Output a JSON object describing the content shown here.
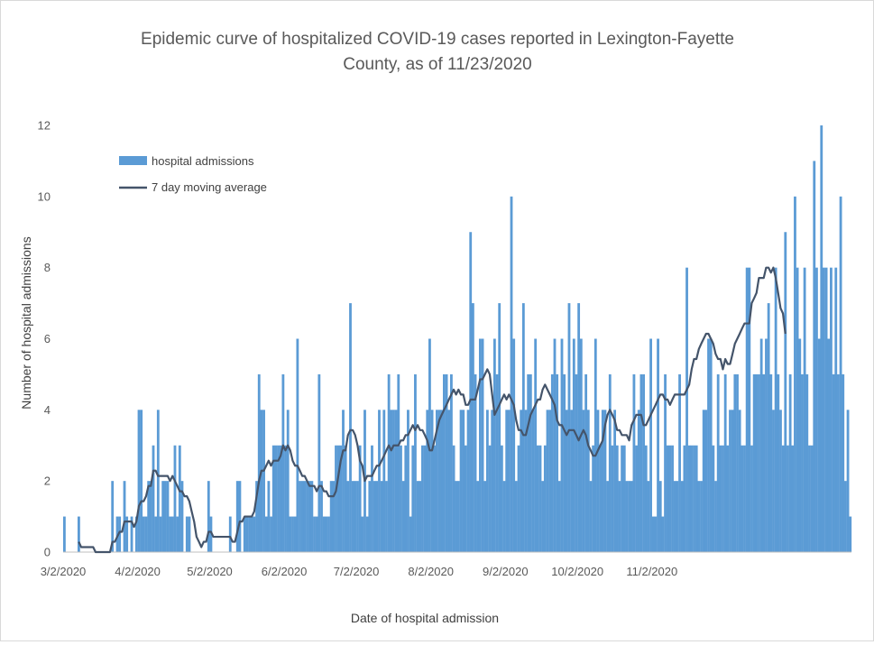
{
  "chart_data": {
    "type": "bar",
    "title_line1": "Epidemic curve of hospitalized COVID-19 cases reported in Lexington-Fayette",
    "title_line2": "County, as of 11/23/2020",
    "xlabel": "Date of hospital admission",
    "ylabel": "Number of hospital admissions",
    "ylim": [
      0,
      12
    ],
    "yticks": [
      "0",
      "2",
      "4",
      "6",
      "8",
      "10",
      "12"
    ],
    "x_start": "3/2/2020",
    "x_end": "11/23/2020",
    "xticks": [
      {
        "label": "3/2/2020",
        "day": 0
      },
      {
        "label": "4/2/2020",
        "day": 31
      },
      {
        "label": "5/2/2020",
        "day": 61
      },
      {
        "label": "6/2/2020",
        "day": 92
      },
      {
        "label": "7/2/2020",
        "day": 122
      },
      {
        "label": "8/2/2020",
        "day": 153
      },
      {
        "label": "9/2/2020",
        "day": 184
      },
      {
        "label": "10/2/2020",
        "day": 214
      },
      {
        "label": "11/2/2020",
        "day": 245
      }
    ],
    "grid": false,
    "legend_position": "top-left",
    "series": [
      {
        "name": "hospital admissions",
        "kind": "bar",
        "color": "#5b9bd5",
        "values": [
          1,
          0,
          0,
          0,
          0,
          0,
          1,
          0,
          0,
          0,
          0,
          0,
          0,
          0,
          0,
          0,
          0,
          0,
          0,
          0,
          2,
          0,
          1,
          1,
          0,
          2,
          1,
          0,
          1,
          0,
          1,
          4,
          4,
          1,
          1,
          2,
          2,
          3,
          1,
          4,
          1,
          2,
          2,
          2,
          1,
          1,
          3,
          1,
          3,
          2,
          0,
          1,
          1,
          0,
          0,
          0,
          0,
          0,
          0,
          0,
          2,
          1,
          0,
          0,
          0,
          0,
          0,
          0,
          0,
          1,
          0,
          0,
          2,
          2,
          0,
          1,
          1,
          1,
          1,
          1,
          2,
          5,
          4,
          4,
          1,
          2,
          1,
          3,
          3,
          3,
          3,
          5,
          3,
          4,
          1,
          1,
          1,
          6,
          2,
          2,
          2,
          2,
          2,
          2,
          1,
          1,
          5,
          2,
          1,
          1,
          1,
          2,
          2,
          3,
          3,
          3,
          4,
          3,
          2,
          7,
          2,
          2,
          2,
          3,
          1,
          4,
          1,
          2,
          3,
          2,
          2,
          4,
          2,
          4,
          2,
          5,
          4,
          4,
          4,
          5,
          3,
          2,
          3,
          4,
          1,
          3,
          5,
          2,
          2,
          3,
          3,
          4,
          6,
          4,
          3,
          4,
          4,
          4,
          5,
          5,
          4,
          5,
          3,
          2,
          2,
          4,
          4,
          3,
          4,
          9,
          7,
          5,
          2,
          6,
          6,
          2,
          4,
          3,
          4,
          6,
          5,
          7,
          3,
          2,
          4,
          4,
          10,
          6,
          2,
          3,
          4,
          7,
          4,
          5,
          5,
          4,
          6,
          3,
          3,
          2,
          3,
          4,
          4,
          5,
          6,
          5,
          2,
          6,
          5,
          4,
          7,
          4,
          6,
          5,
          7,
          6,
          4,
          5,
          4,
          2,
          3,
          6,
          4,
          3,
          4,
          4,
          2,
          5,
          3,
          4,
          3,
          2,
          3,
          3,
          2,
          2,
          2,
          5,
          3,
          4,
          5,
          5,
          3,
          2,
          6,
          1,
          1,
          6,
          2,
          1,
          5,
          3,
          3,
          3,
          2,
          2,
          5,
          2,
          3,
          8,
          3,
          3,
          3,
          3,
          2,
          2,
          4,
          4,
          6,
          6,
          3,
          2,
          5,
          3,
          3,
          5,
          3,
          4,
          4,
          5,
          5,
          4,
          3,
          3,
          8,
          8,
          3,
          5,
          5,
          5,
          6,
          5,
          6,
          7,
          5,
          4,
          8,
          5,
          4,
          3,
          9,
          3,
          5,
          3,
          10,
          8,
          6,
          5,
          8,
          5,
          3,
          3,
          11,
          8,
          6,
          12,
          8,
          8,
          6,
          8,
          5,
          8,
          5,
          10,
          5,
          2,
          4,
          1
        ]
      },
      {
        "name": "7 day moving average",
        "kind": "line",
        "color": "#44546a",
        "values": [
          null,
          null,
          null,
          null,
          null,
          null,
          0.29,
          0.14,
          0.14,
          0.14,
          0.14,
          0.14,
          0.14,
          0,
          0,
          0,
          0,
          0,
          0,
          0,
          0.29,
          0.29,
          0.43,
          0.57,
          0.57,
          0.86,
          0.86,
          0.86,
          0.86,
          0.71,
          0.86,
          1.29,
          1.43,
          1.43,
          1.57,
          1.86,
          1.86,
          2.29,
          2.29,
          2.14,
          2.14,
          2.14,
          2.14,
          2.14,
          2,
          2.14,
          2,
          1.86,
          1.71,
          1.71,
          1.57,
          1.57,
          1.43,
          1.14,
          0.86,
          0.43,
          0.29,
          0.14,
          0.29,
          0.29,
          0.57,
          0.57,
          0.43,
          0.43,
          0.43,
          0.43,
          0.43,
          0.43,
          0.43,
          0.43,
          0.29,
          0.29,
          0.57,
          0.86,
          0.86,
          1,
          1,
          1,
          1,
          1.14,
          1.57,
          2,
          2.29,
          2.29,
          2.43,
          2.57,
          2.43,
          2.57,
          2.57,
          2.57,
          2.71,
          3,
          2.86,
          3,
          2.86,
          2.57,
          2.43,
          2.43,
          2.29,
          2.14,
          2.14,
          2,
          1.86,
          1.86,
          1.86,
          1.71,
          1.86,
          1.86,
          1.71,
          1.71,
          1.57,
          1.57,
          1.57,
          1.71,
          2.14,
          2.57,
          2.86,
          2.86,
          3.29,
          3.43,
          3.43,
          3.29,
          3,
          2.57,
          2.43,
          2,
          2.14,
          2.14,
          2.14,
          2.29,
          2.43,
          2.43,
          2.57,
          2.71,
          2.86,
          3,
          2.86,
          3,
          3,
          3,
          3.14,
          3.14,
          3.29,
          3.29,
          3.43,
          3.57,
          3.43,
          3.57,
          3.43,
          3.43,
          3.29,
          3.14,
          2.86,
          2.86,
          3.14,
          3.43,
          3.71,
          3.86,
          4,
          4.14,
          4.29,
          4.43,
          4.57,
          4.43,
          4.57,
          4.43,
          4.43,
          4.14,
          4.14,
          4.29,
          4.29,
          4.29,
          4.57,
          4.86,
          4.86,
          5,
          5.14,
          5,
          4.43,
          3.86,
          4,
          4.14,
          4.29,
          4.43,
          4.29,
          4.43,
          4.29,
          4.14,
          3.71,
          3.43,
          3.43,
          3.29,
          3.29,
          3.57,
          3.86,
          4,
          4.14,
          4.29,
          4.29,
          4.57,
          4.71,
          4.57,
          4.43,
          4.29,
          4.14,
          3.71,
          3.57,
          3.57,
          3.43,
          3.29,
          3.43,
          3.43,
          3.43,
          3.29,
          3.14,
          3.29,
          3.43,
          3.29,
          3,
          2.86,
          2.71,
          2.71,
          2.86,
          3,
          3.14,
          3.57,
          3.86,
          4,
          3.86,
          3.71,
          3.43,
          3.43,
          3.29,
          3.29,
          3.29,
          3.14,
          3.57,
          3.71,
          3.86,
          3.86,
          3.86,
          3.57,
          3.57,
          3.71,
          3.86,
          4,
          4.14,
          4.29,
          4.43,
          4.43,
          4.29,
          4.29,
          4.14,
          4.29,
          4.43,
          4.43,
          4.43,
          4.43,
          4.43,
          4.57,
          4.71,
          5.14,
          5.43,
          5.43,
          5.71,
          5.86,
          6,
          6.14,
          6.14,
          6,
          5.86,
          5.57,
          5.43,
          5.43,
          5.14,
          5.43,
          5.29,
          5.29,
          5.57,
          5.86,
          6,
          6.14,
          6.29,
          6.43,
          6.43,
          6.43,
          7,
          7.14,
          7.29,
          7.71,
          7.71,
          7.71,
          8,
          8,
          7.86,
          8,
          7.71,
          7.29,
          6.86,
          6.71,
          6.14
        ]
      }
    ]
  }
}
